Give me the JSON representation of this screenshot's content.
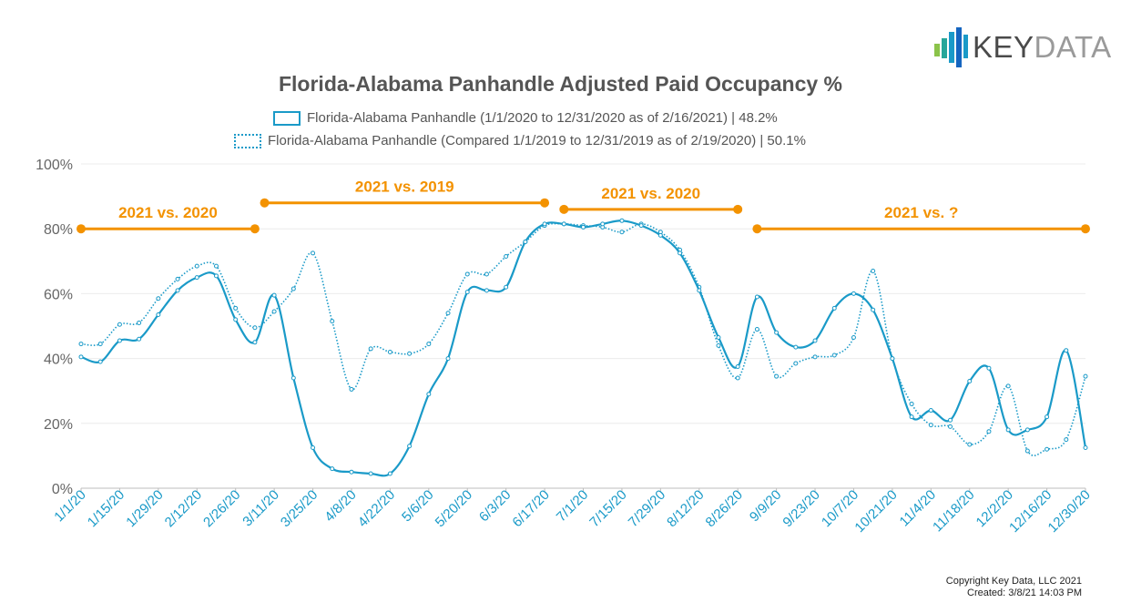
{
  "brand": {
    "word_key": "KEY",
    "word_data": "DATA",
    "icon": "bar-logo-icon",
    "colors": [
      "#8bc34a",
      "#26a69a",
      "#1a9ac8",
      "#1565c0"
    ]
  },
  "chart_data": {
    "type": "line",
    "title": "Florida-Alabama Panhandle Adjusted Paid Occupancy %",
    "xlabel": "",
    "ylabel": "",
    "ylim": [
      0,
      100
    ],
    "yticks": [
      "0%",
      "20%",
      "40%",
      "60%",
      "80%",
      "100%"
    ],
    "x_tick_labels": [
      "1/1/20",
      "1/15/20",
      "1/29/20",
      "2/12/20",
      "2/26/20",
      "3/11/20",
      "3/25/20",
      "4/8/20",
      "4/22/20",
      "5/6/20",
      "5/20/20",
      "6/3/20",
      "6/17/20",
      "7/1/20",
      "7/15/20",
      "7/29/20",
      "8/12/20",
      "8/26/20",
      "9/9/20",
      "9/23/20",
      "10/7/20",
      "10/21/20",
      "11/4/20",
      "11/18/20",
      "12/2/20",
      "12/16/20",
      "12/30/20"
    ],
    "weeks": 53,
    "series": [
      {
        "name": "Florida-Alabama Panhandle (1/1/2020 to 12/31/2020 as of 2/16/2021) | 48.2%",
        "style": "solid",
        "color": "#1a9ac8",
        "values": [
          40.5,
          39,
          45.5,
          46,
          53.5,
          61,
          65,
          65.5,
          52,
          45,
          59.5,
          34,
          12.5,
          6,
          5,
          4.5,
          4.5,
          13,
          29,
          40,
          60.5,
          61,
          62,
          76,
          81.5,
          81.5,
          80.5,
          81.5,
          82.5,
          81,
          78,
          72.5,
          61,
          46.5,
          37.5,
          59,
          48,
          43.5,
          45.5,
          55.5,
          60,
          55,
          40,
          22,
          24,
          21,
          33,
          37,
          18,
          18,
          22,
          42.5,
          12.5
        ]
      },
      {
        "name": "Florida-Alabama Panhandle (Compared 1/1/2019 to 12/31/2019 as of 2/19/2020) | 50.1%",
        "style": "dotted",
        "color": "#1a9ac8",
        "values": [
          44.5,
          44.5,
          50.5,
          51,
          58.5,
          64.5,
          68.5,
          68.5,
          55.5,
          49.5,
          54.5,
          61.5,
          72.5,
          51.5,
          30.5,
          43,
          42,
          41.5,
          44.5,
          54,
          66,
          66,
          71.5,
          76,
          81,
          81.5,
          81,
          80.5,
          79,
          81.5,
          79,
          73.5,
          62,
          44,
          34,
          49,
          34.5,
          38.5,
          40.5,
          41,
          46.5,
          67,
          40,
          26,
          19.5,
          19,
          13.5,
          17.5,
          31.5,
          11.5,
          12,
          15,
          34.5
        ]
      }
    ],
    "annotations": [
      {
        "label": "2021 vs. 2020",
        "start_week": 0,
        "end_week": 9,
        "level": 80
      },
      {
        "label": "2021 vs. 2019",
        "start_week": 9.5,
        "end_week": 24,
        "level": 88
      },
      {
        "label": "2021 vs. 2020",
        "start_week": 25,
        "end_week": 34,
        "level": 86
      },
      {
        "label": "2021 vs. ?",
        "start_week": 35,
        "end_week": 52,
        "level": 80
      }
    ],
    "annotation_color": "#f39200",
    "grid": true,
    "legend_position": "top-center"
  },
  "footer": {
    "copyright": "Copyright Key Data, LLC 2021",
    "created": "Created: 3/8/21 14:03 PM"
  }
}
